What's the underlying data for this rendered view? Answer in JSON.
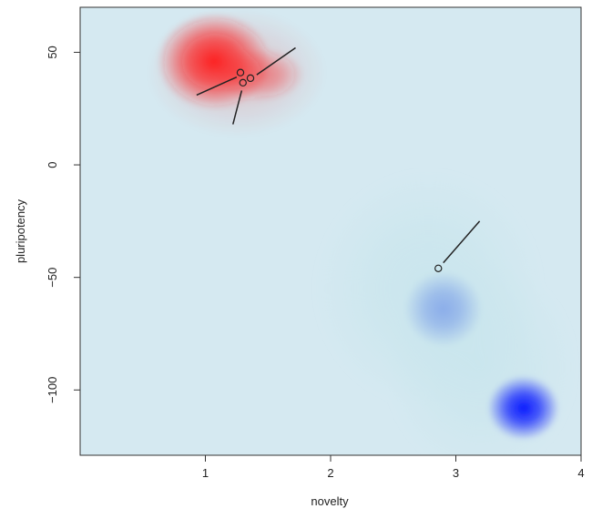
{
  "chart_data": {
    "type": "heatmap",
    "title": "",
    "xlabel": "novelty",
    "ylabel": "pluripotency",
    "xlim": [
      0,
      4
    ],
    "ylim": [
      -129,
      70
    ],
    "x_ticks": [
      1,
      2,
      3,
      4
    ],
    "y_ticks": [
      50,
      0,
      -50,
      -100
    ],
    "x_tick_labels": [
      "1",
      "2",
      "3",
      "4"
    ],
    "y_tick_labels": [
      "50",
      "0",
      "−50",
      "−100"
    ],
    "grid": false,
    "legend": "none",
    "colors": {
      "background": "#d5e9f1",
      "high": "#ff1a1a",
      "low": "#0a1aff",
      "low_mid": "#6f94e8",
      "halo": "#c7e5ec",
      "points": "#222222"
    },
    "density_blobs": [
      {
        "name": "red-core",
        "sign": "high",
        "x": 1.07,
        "y": 46,
        "sx": 0.19,
        "sy": 9,
        "intensity": 0.95
      },
      {
        "name": "red-tail",
        "sign": "high",
        "x": 1.43,
        "y": 40,
        "sx": 0.15,
        "sy": 5,
        "intensity": 0.45
      },
      {
        "name": "red-halo",
        "sign": "high",
        "x": 1.25,
        "y": 41,
        "sx": 0.3,
        "sy": 12,
        "intensity": 0.15
      },
      {
        "name": "blue-mid",
        "sign": "low",
        "x": 2.9,
        "y": -64,
        "sx": 0.13,
        "sy": 7,
        "intensity": 0.7
      },
      {
        "name": "blue-strong",
        "sign": "low",
        "x": 3.54,
        "y": -108,
        "sx": 0.12,
        "sy": 6,
        "intensity": 1.0
      },
      {
        "name": "halo-upper",
        "sign": "halo",
        "x": 2.78,
        "y": -55,
        "sx": 0.38,
        "sy": 22,
        "intensity": 0.8
      },
      {
        "name": "halo-lower",
        "sign": "halo",
        "x": 3.2,
        "y": -90,
        "sx": 0.32,
        "sy": 20,
        "intensity": 0.7
      }
    ],
    "points": [
      {
        "x": 1.28,
        "y": 41
      },
      {
        "x": 1.3,
        "y": 36.5
      },
      {
        "x": 1.36,
        "y": 38.5
      },
      {
        "x": 2.86,
        "y": -46
      }
    ],
    "segments": [
      {
        "x1": 0.93,
        "y1": 31,
        "x2": 1.25,
        "y2": 39
      },
      {
        "x1": 1.41,
        "y1": 40,
        "x2": 1.72,
        "y2": 52
      },
      {
        "x1": 1.22,
        "y1": 18,
        "x2": 1.29,
        "y2": 33
      },
      {
        "x1": 2.9,
        "y1": -43.5,
        "x2": 3.19,
        "y2": -25
      }
    ]
  }
}
